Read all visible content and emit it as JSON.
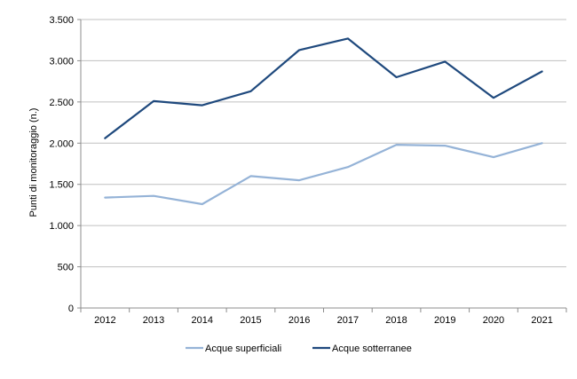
{
  "chart_data": {
    "type": "line",
    "title": "",
    "xlabel": "",
    "ylabel": "Punti di monitoraggio (n.)",
    "categories": [
      "2012",
      "2013",
      "2014",
      "2015",
      "2016",
      "2017",
      "2018",
      "2019",
      "2020",
      "2021"
    ],
    "ylim": [
      0,
      3500
    ],
    "yticks": [
      0,
      500,
      1000,
      1500,
      2000,
      2500,
      3000,
      3500
    ],
    "ytick_labels": [
      "0",
      "500",
      "1.000",
      "1.500",
      "2.000",
      "2.500",
      "3.000",
      "3.500"
    ],
    "grid": "horizontal",
    "legend_position": "bottom",
    "series": [
      {
        "name": "Acque superficiali",
        "color": "#95b3d7",
        "values": [
          1340,
          1360,
          1260,
          1600,
          1550,
          1710,
          1980,
          1970,
          1830,
          2000
        ]
      },
      {
        "name": "Acque sotterranee",
        "color": "#1f497d",
        "values": [
          2060,
          2510,
          2460,
          2630,
          3130,
          3270,
          2800,
          2990,
          2550,
          2870
        ]
      }
    ]
  }
}
